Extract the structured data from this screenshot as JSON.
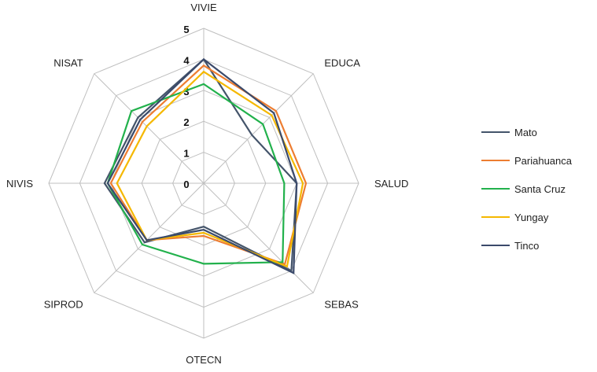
{
  "chart_data": {
    "type": "radar",
    "categories": [
      "VIVIE",
      "EDUCA",
      "SALUD",
      "SEBAS",
      "OTECN",
      "SIPROD",
      "NIVIS",
      "NISAT"
    ],
    "ticks": [
      "0",
      "1",
      "2",
      "3",
      "4",
      "5"
    ],
    "rlim": [
      0,
      5
    ],
    "grid": true,
    "legend_position": "right",
    "series": [
      {
        "name": "Mato",
        "color": "#44546a",
        "values": [
          4.0,
          2.2,
          3.0,
          4.0,
          1.4,
          2.7,
          3.2,
          3.0
        ]
      },
      {
        "name": "Pariahuanca",
        "color": "#ed7d31",
        "values": [
          3.8,
          3.3,
          3.3,
          3.7,
          1.7,
          2.6,
          3.0,
          2.8
        ]
      },
      {
        "name": "Santa Cruz",
        "color": "#22b14c",
        "values": [
          3.2,
          2.7,
          2.6,
          3.6,
          2.6,
          2.8,
          3.1,
          3.3
        ]
      },
      {
        "name": "Yungay",
        "color": "#f5b800",
        "values": [
          3.6,
          3.1,
          3.2,
          3.8,
          1.6,
          2.6,
          2.8,
          2.6
        ]
      },
      {
        "name": "Tinco",
        "color": "#3b4a6b",
        "values": [
          4.0,
          3.2,
          3.0,
          4.1,
          1.5,
          2.6,
          3.1,
          2.9
        ]
      }
    ]
  }
}
